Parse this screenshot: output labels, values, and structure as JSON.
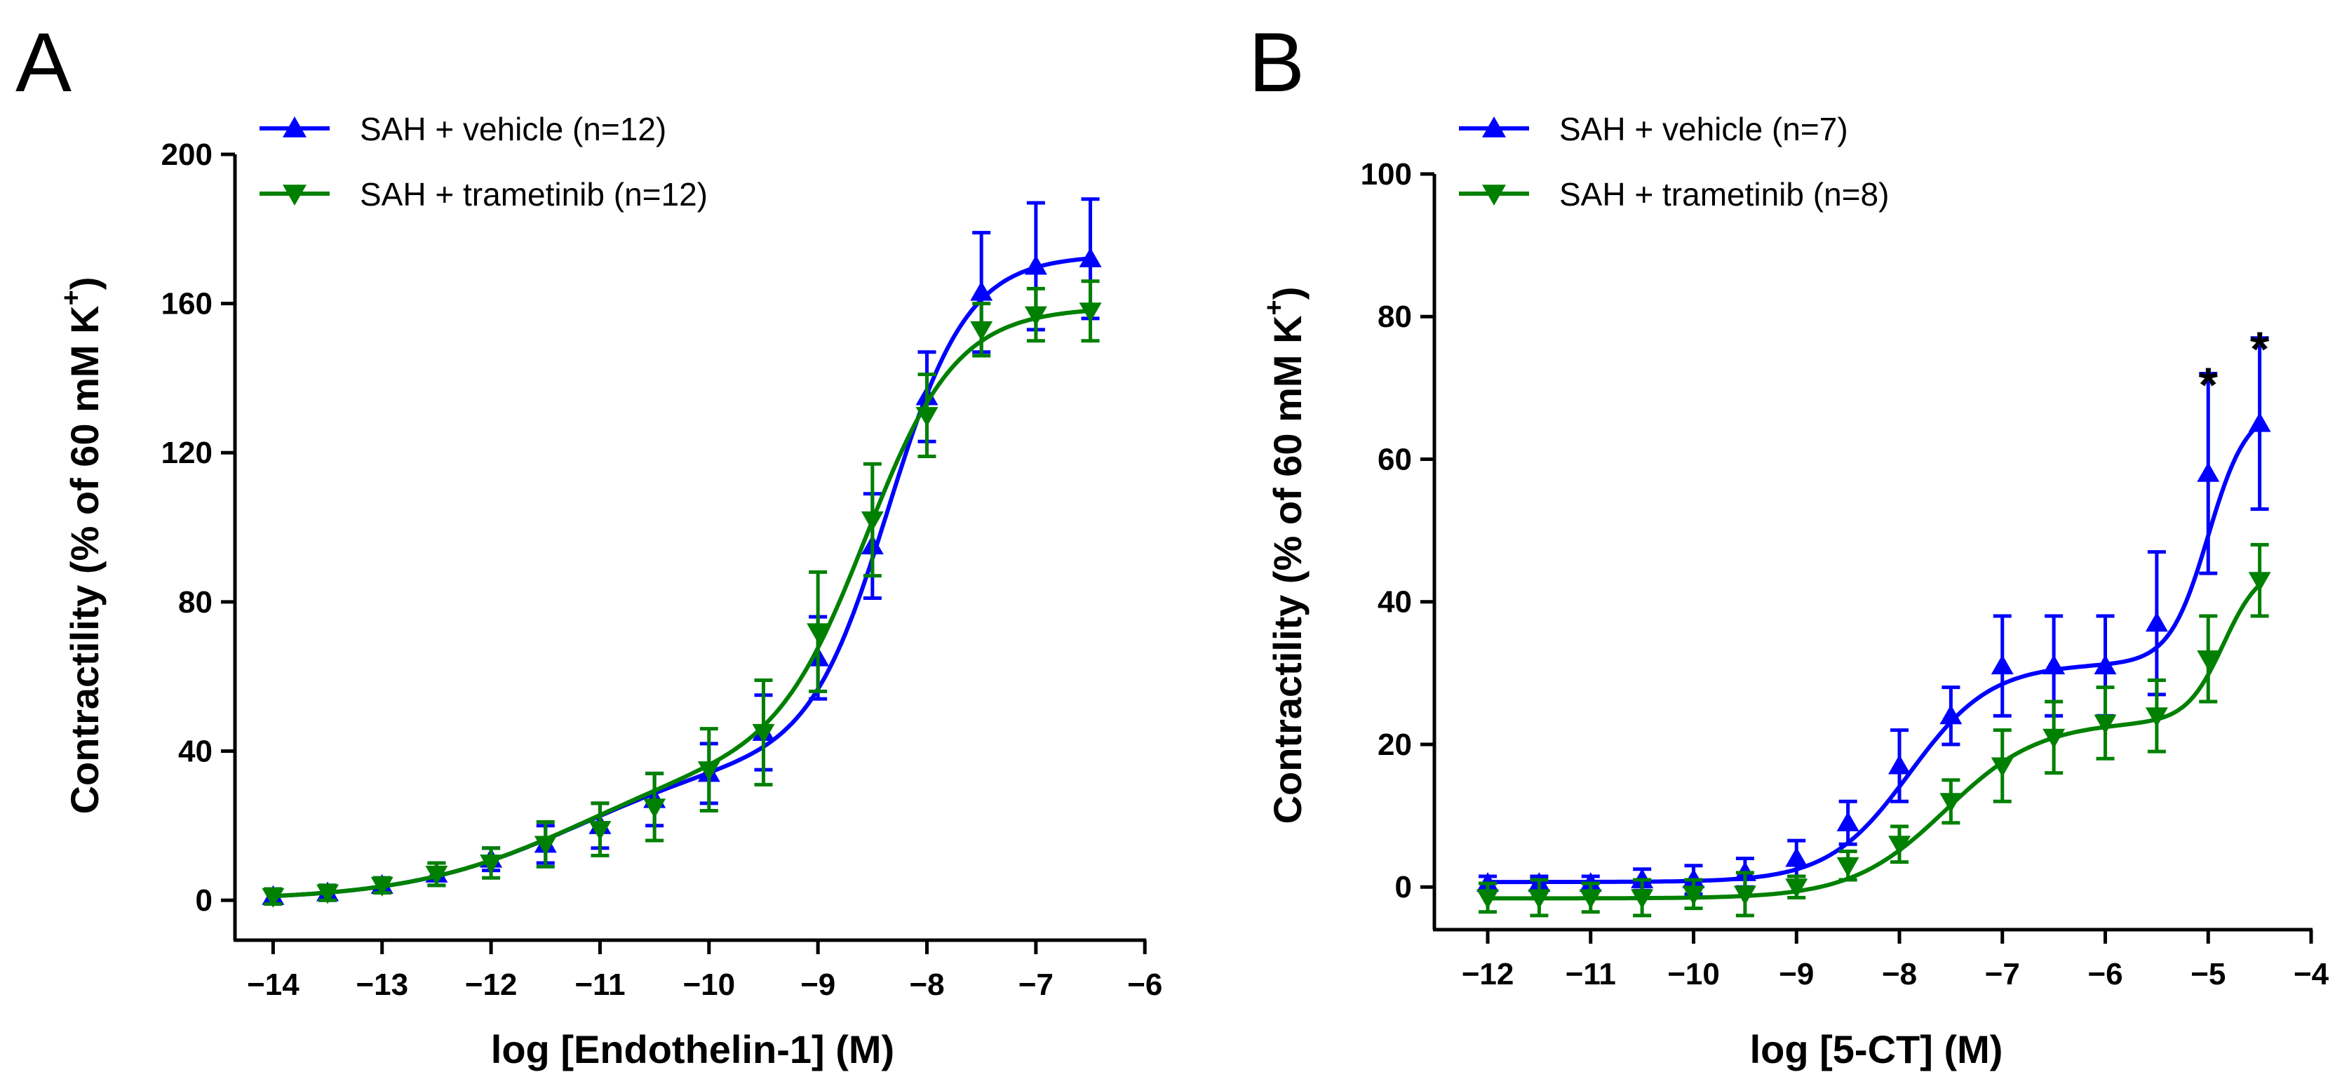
{
  "chart_data": [
    {
      "panel": "A",
      "type": "line",
      "title": "",
      "xlabel": "log [Endothelin-1] (M)",
      "ylabel_main": "Contractility (% of 60 mM K",
      "ylabel_sup": "+",
      "ylabel_end": ")",
      "xlim": [
        -14.35,
        -5.95
      ],
      "ylim": [
        -6,
        200
      ],
      "xticks": [
        -14,
        -13,
        -12,
        -11,
        -10,
        -9,
        -8,
        -7,
        -6
      ],
      "xtick_labels": [
        "−14",
        "−13",
        "−12",
        "−11",
        "−10",
        "−9",
        "−8",
        "−7",
        "−6"
      ],
      "yticks": [
        0,
        40,
        80,
        120,
        160,
        200
      ],
      "ytick_labels": [
        "0",
        "40",
        "80",
        "120",
        "160",
        "200"
      ],
      "legend_position": "top-left",
      "annotations": [],
      "series": [
        {
          "name": "SAH + vehicle (n=12)",
          "color": "#0000ff",
          "marker": "triangle-up",
          "x": [
            -14,
            -13.5,
            -13,
            -12.5,
            -12,
            -11.5,
            -11,
            -10.5,
            -10,
            -9.5,
            -9,
            -8.5,
            -8,
            -7.5,
            -7,
            -6.5
          ],
          "values": [
            1,
            2,
            4,
            7,
            11,
            15,
            20,
            27,
            34,
            45,
            65,
            95,
            135,
            163,
            170,
            172
          ],
          "errors": [
            2,
            2,
            2,
            3,
            3,
            5,
            6,
            7,
            8,
            10,
            11,
            14,
            12,
            16,
            17,
            16
          ]
        },
        {
          "name": "SAH + trametinib (n=12)",
          "color": "#008000",
          "marker": "triangle-down",
          "x": [
            -14,
            -13.5,
            -13,
            -12.5,
            -12,
            -11.5,
            -11,
            -10.5,
            -10,
            -9.5,
            -9,
            -8.5,
            -8,
            -7.5,
            -7,
            -6.5
          ],
          "values": [
            1,
            2,
            4,
            7,
            10,
            15,
            19,
            25,
            35,
            45,
            72,
            102,
            130,
            153,
            157,
            158
          ],
          "errors": [
            2,
            2,
            2,
            3,
            4,
            6,
            7,
            9,
            11,
            14,
            16,
            15,
            11,
            7,
            7,
            8
          ]
        }
      ],
      "fit_params": [
        {
          "bottom": 0,
          "span1": 40,
          "ec1": -11.2,
          "h1": 0.55,
          "span2": 133,
          "ec2": -8.35,
          "h2": 1.2
        },
        {
          "bottom": 0,
          "span1": 40,
          "ec1": -11.2,
          "h1": 0.55,
          "span2": 119,
          "ec2": -8.55,
          "h2": 1.05
        }
      ]
    },
    {
      "panel": "B",
      "type": "line",
      "title": "",
      "xlabel": "log [5-CT] (M)",
      "ylabel_main": "Contractility (% of 60 mM K",
      "ylabel_sup": "+",
      "ylabel_end": ")",
      "xlim": [
        -12.45,
        -4.0
      ],
      "ylim": [
        -5,
        100
      ],
      "xticks": [
        -12,
        -11,
        -10,
        -9,
        -8,
        -7,
        -6,
        -5,
        -4
      ],
      "xtick_labels": [
        "−12",
        "−11",
        "−10",
        "−9",
        "−8",
        "−7",
        "−6",
        "−5",
        "−4"
      ],
      "yticks": [
        0,
        20,
        40,
        60,
        80,
        100
      ],
      "ytick_labels": [
        "0",
        "20",
        "40",
        "60",
        "80",
        "100"
      ],
      "legend_position": "top-left",
      "annotations": [
        {
          "text": "*",
          "x": -5.0,
          "y": 72
        },
        {
          "text": "*",
          "x": -4.5,
          "y": 77
        }
      ],
      "series": [
        {
          "name": "SAH + vehicle (n=7)",
          "color": "#0000ff",
          "marker": "triangle-up",
          "x": [
            -12,
            -11.5,
            -11,
            -10.5,
            -10,
            -9.5,
            -9,
            -8.5,
            -8,
            -7.5,
            -7,
            -6.5,
            -6,
            -5.5,
            -5,
            -4.5
          ],
          "values": [
            0.5,
            0.5,
            0.5,
            1,
            1,
            2,
            4,
            9,
            17,
            24,
            31,
            31,
            31,
            37,
            58,
            65
          ],
          "errors": [
            1,
            1,
            1,
            1.5,
            2,
            2,
            2.5,
            3,
            5,
            4,
            7,
            7,
            7,
            10,
            14,
            12
          ]
        },
        {
          "name": "SAH + trametinib (n=8)",
          "color": "#008000",
          "marker": "triangle-down",
          "x": [
            -12,
            -11.5,
            -11,
            -10.5,
            -10,
            -9.5,
            -9,
            -8.5,
            -8,
            -7.5,
            -7,
            -6.5,
            -6,
            -5.5,
            -5,
            -4.5
          ],
          "values": [
            -1.5,
            -1.5,
            -1.5,
            -1.5,
            -1,
            -1,
            0,
            3,
            6,
            12,
            17,
            21,
            23,
            24,
            32,
            43
          ],
          "errors": [
            2,
            2.5,
            2,
            2.5,
            2,
            3,
            1.5,
            2,
            2.5,
            3,
            5,
            5,
            5,
            5,
            6,
            5
          ]
        }
      ],
      "fit_params": [
        {
          "bottom": 0.7,
          "span1": 30.6,
          "ec1": -7.9,
          "h1": 1.1,
          "span2": 36,
          "ec2": -5.0,
          "h2": 2.3
        },
        {
          "bottom": -1.6,
          "span1": 24.8,
          "ec1": -7.55,
          "h1": 0.95,
          "span2": 22,
          "ec2": -4.85,
          "h2": 2.4
        }
      ]
    }
  ]
}
